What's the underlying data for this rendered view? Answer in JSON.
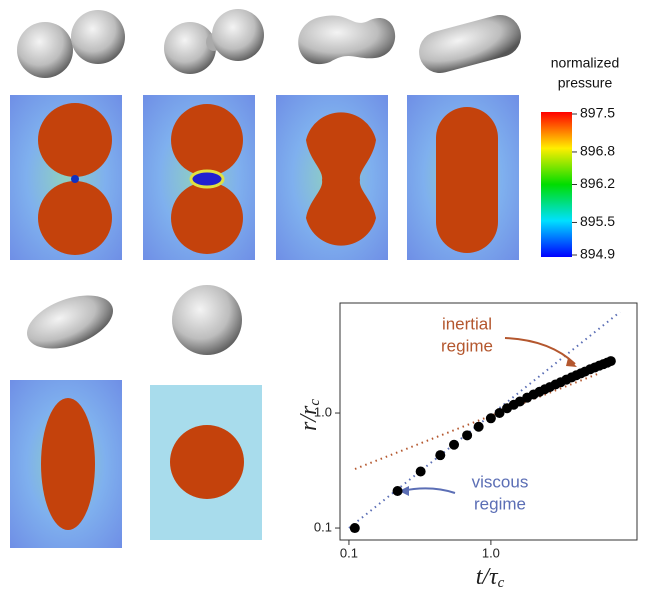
{
  "colorbar": {
    "title": [
      "normalized",
      "pressure"
    ],
    "ticks": [
      897.5,
      896.8,
      896.2,
      895.5,
      894.9
    ]
  },
  "chart_data": {
    "type": "scatter",
    "xlabel": {
      "main": "t/τ",
      "sub": "c"
    },
    "ylabel": {
      "main": "r/r",
      "sub": "c"
    },
    "xscale": "log",
    "yscale": "log",
    "xlim": [
      0.0865,
      10.7
    ],
    "ylim": [
      0.0787,
      9.05
    ],
    "xticks": [
      0.1,
      {
        "value": 1,
        "label": "1.0"
      }
    ],
    "yticks": [
      0.1,
      {
        "value": 1,
        "label": "1.0"
      }
    ],
    "color": "#000000",
    "x": [
      0.11,
      0.22,
      0.32,
      0.44,
      0.55,
      0.68,
      0.82,
      1.0,
      1.15,
      1.3,
      1.45,
      1.6,
      1.8,
      2.0,
      2.2,
      2.4,
      2.6,
      2.85,
      3.1,
      3.4,
      3.7,
      4.0,
      4.3,
      4.6,
      5.0,
      5.4,
      5.8,
      6.2,
      6.6,
      7.0
    ],
    "values": [
      0.1,
      0.21,
      0.31,
      0.43,
      0.53,
      0.64,
      0.76,
      0.9,
      1.0,
      1.1,
      1.18,
      1.26,
      1.36,
      1.45,
      1.53,
      1.61,
      1.68,
      1.77,
      1.85,
      1.95,
      2.04,
      2.13,
      2.21,
      2.29,
      2.4,
      2.49,
      2.58,
      2.66,
      2.74,
      2.83
    ],
    "annotations": [
      {
        "lines": [
          "inertial",
          "regime"
        ],
        "color": "#b4572e"
      },
      {
        "lines": [
          "viscous",
          "regime"
        ],
        "color": "#5b6eb5"
      }
    ]
  }
}
